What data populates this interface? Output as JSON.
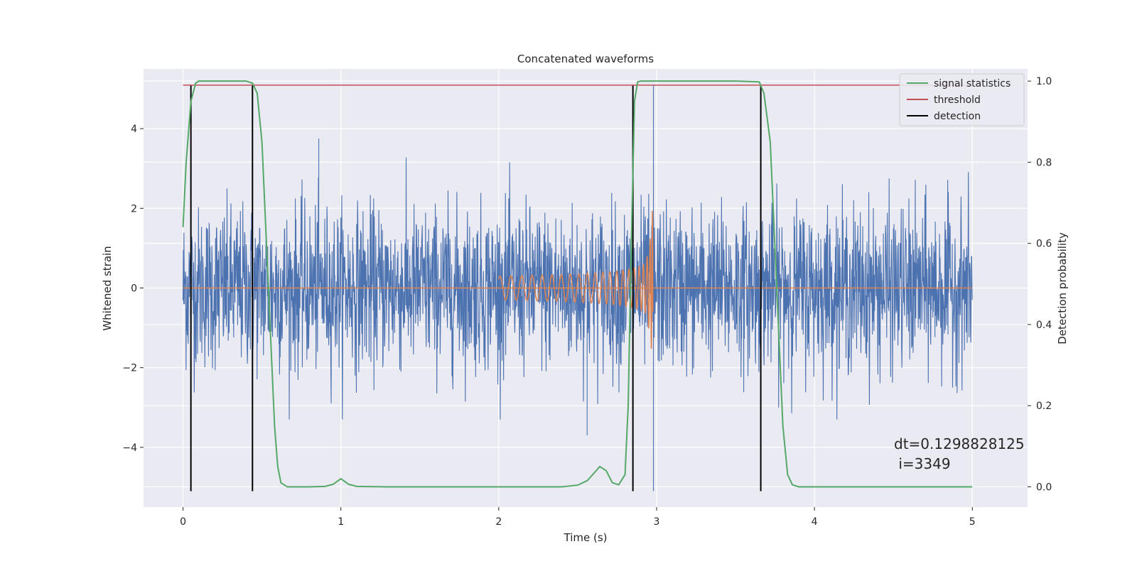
{
  "chart_data": {
    "type": "line",
    "title": "Concatenated waveforms",
    "xlabel": "Time (s)",
    "ylabel_left": "Whitened strain",
    "ylabel_right": "Detection probability",
    "xlim": [
      -0.25,
      5.35
    ],
    "ylim_left": [
      -5.5,
      5.5
    ],
    "ylim_right": [
      -0.05,
      1.03
    ],
    "x_ticks": [
      0,
      1,
      2,
      3,
      4,
      5
    ],
    "x_tick_labels": [
      "0",
      "1",
      "2",
      "3",
      "4",
      "5"
    ],
    "y_left_ticks": [
      -4,
      -2,
      0,
      2,
      4
    ],
    "y_left_tick_labels": [
      "−4",
      "−2",
      "0",
      "2",
      "4"
    ],
    "y_right_ticks": [
      0.0,
      0.2,
      0.4,
      0.6,
      0.8,
      1.0
    ],
    "y_right_tick_labels": [
      "0.0",
      "0.2",
      "0.4",
      "0.6",
      "0.8",
      "1.0"
    ],
    "grid": true,
    "legend_placement": "top-right",
    "colors": {
      "background": "#eaeaf2",
      "grid": "#ffffff",
      "strain": "#4c72b0",
      "injected_waveform": "#dd8452",
      "signal_statistics": "#55a868",
      "threshold": "#c44e52",
      "detection": "#000000"
    },
    "series": [
      {
        "name": "signal statistics",
        "axis": "right",
        "x": [
          0.0,
          0.02,
          0.05,
          0.08,
          0.1,
          0.15,
          0.3,
          0.4,
          0.44,
          0.47,
          0.5,
          0.54,
          0.58,
          0.6,
          0.62,
          0.66,
          0.7,
          0.8,
          0.9,
          0.95,
          1.0,
          1.05,
          1.1,
          1.3,
          2.0,
          2.4,
          2.5,
          2.56,
          2.6,
          2.64,
          2.68,
          2.72,
          2.76,
          2.8,
          2.82,
          2.84,
          2.86,
          2.88,
          2.9,
          3.0,
          3.5,
          3.65,
          3.68,
          3.72,
          3.76,
          3.8,
          3.83,
          3.86,
          3.9,
          4.0,
          5.0
        ],
        "values": [
          0.64,
          0.8,
          0.95,
          0.995,
          1.0,
          1.0,
          1.0,
          1.0,
          0.995,
          0.97,
          0.85,
          0.5,
          0.15,
          0.05,
          0.01,
          0.0,
          0.0,
          0.0,
          0.001,
          0.006,
          0.02,
          0.006,
          0.001,
          0.0,
          0.0,
          0.0,
          0.004,
          0.015,
          0.032,
          0.05,
          0.04,
          0.01,
          0.005,
          0.03,
          0.2,
          0.6,
          0.95,
          0.998,
          1.0,
          1.0,
          1.0,
          0.998,
          0.97,
          0.85,
          0.5,
          0.15,
          0.03,
          0.005,
          0.0,
          0.0,
          0.0
        ]
      },
      {
        "name": "threshold",
        "axis": "right",
        "x": [
          0,
          5
        ],
        "values": [
          0.99,
          0.99
        ]
      },
      {
        "name": "detection",
        "axis": "left",
        "x": [
          0.05,
          0.44,
          2.85,
          3.66
        ],
        "span": [
          -5.1,
          5.1
        ]
      },
      {
        "name": "",
        "axis": "left",
        "description_shown": "whitened strain data",
        "x_range": [
          0,
          5
        ],
        "typical_amplitude": 1.0,
        "extreme_values": {
          "max": 3.75,
          "min": -5.1
        }
      },
      {
        "name": "",
        "axis": "left",
        "description_shown": "injected chirp",
        "x_range": [
          2.0,
          2.98
        ],
        "start_amplitude": 0.3,
        "peak_amplitude": 3.3
      }
    ],
    "legend": [
      "signal statistics",
      "threshold",
      "detection"
    ],
    "annotation_line1": "dt=0.1298828125",
    "annotation_line2": " i=3349"
  }
}
